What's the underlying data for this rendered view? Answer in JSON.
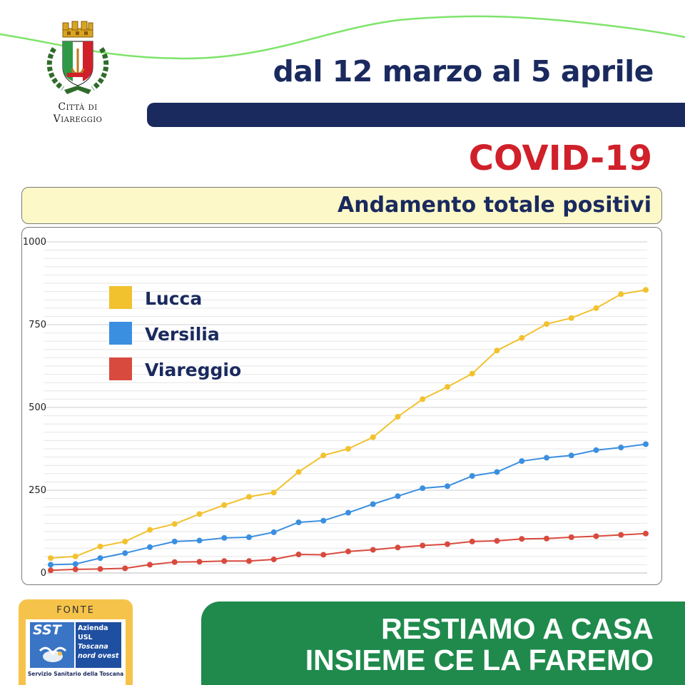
{
  "header": {
    "city_line1": "Città di",
    "city_line2": "Viareggio",
    "date_range": "dal 12 marzo al 5 aprile",
    "topic": "COVID-19",
    "subtitle": "Andamento totale positivi"
  },
  "colors": {
    "navy": "#1a2a5e",
    "red": "#d0202a",
    "green": "#1f8a4c",
    "wave": "#7ee46a",
    "lucca": "#f2c12e",
    "versilia": "#3b8fe0",
    "viareggio": "#d94a3e"
  },
  "chart_data": {
    "type": "line",
    "title": "Andamento totale positivi",
    "xlabel": "",
    "ylabel": "",
    "ylim": [
      0,
      1000
    ],
    "yticks": [
      "0",
      "250",
      "500",
      "750",
      "1000"
    ],
    "grid": true,
    "legend_position": "top-left",
    "series": [
      {
        "name": "Lucca",
        "color": "#f2c12e",
        "values": [
          45,
          50,
          80,
          95,
          130,
          148,
          178,
          205,
          230,
          243,
          305,
          355,
          375,
          410,
          472,
          525,
          562,
          602,
          672,
          710,
          752,
          770,
          800,
          842,
          855
        ]
      },
      {
        "name": "Versilia",
        "color": "#3b8fe0",
        "values": [
          25,
          27,
          45,
          60,
          78,
          95,
          98,
          106,
          108,
          123,
          153,
          158,
          182,
          208,
          232,
          256,
          262,
          293,
          305,
          338,
          348,
          355,
          371,
          379,
          389
        ]
      },
      {
        "name": "Viareggio",
        "color": "#d94a3e",
        "values": [
          8,
          11,
          12,
          14,
          25,
          33,
          34,
          36,
          36,
          41,
          56,
          55,
          65,
          70,
          77,
          83,
          87,
          95,
          97,
          103,
          104,
          108,
          111,
          115,
          119
        ]
      }
    ]
  },
  "fonte": {
    "label": "FONTE",
    "logo_abbr": "SST",
    "logo_line1": "Azienda",
    "logo_line2": "USL",
    "logo_line3": "Toscana",
    "logo_line4": "nord ovest",
    "logo_caption": "Servizio Sanitario della Toscana"
  },
  "slogan": {
    "line1": "RESTIAMO A CASA",
    "line2": "INSIEME CE LA FAREMO"
  }
}
